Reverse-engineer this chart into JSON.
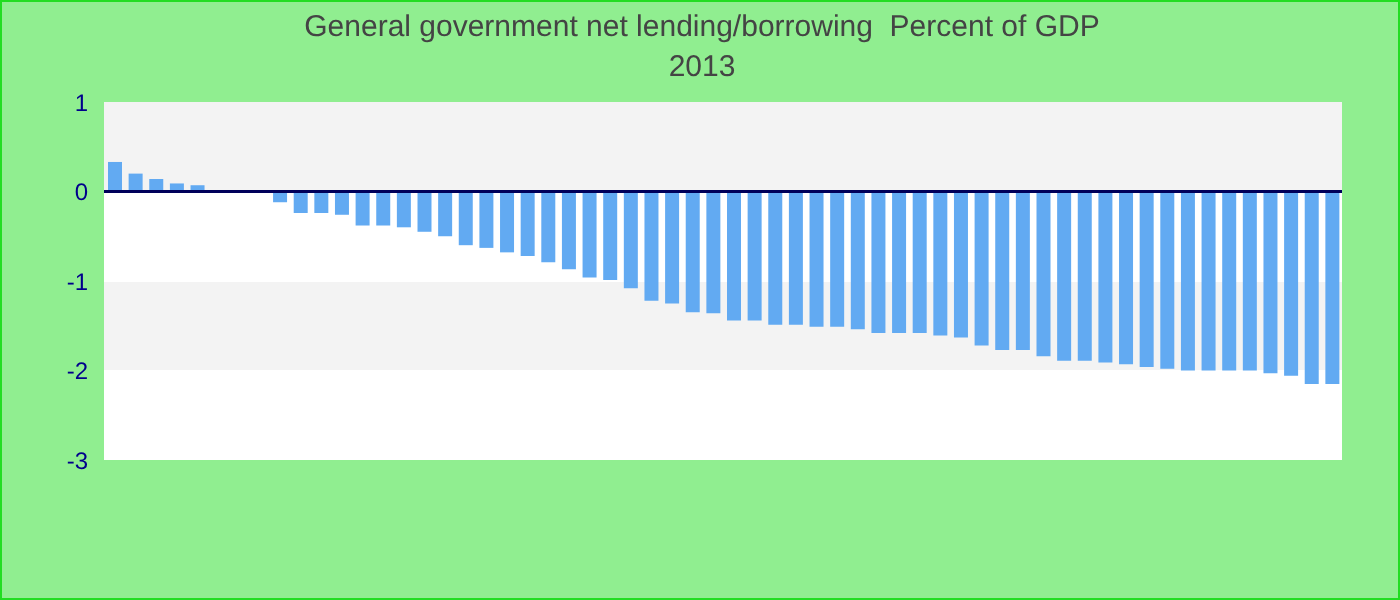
{
  "chart_data": {
    "type": "bar",
    "title": "General government net lending/borrowing  Percent of GDP",
    "subtitle": "2013",
    "categories": [
      null,
      null,
      null,
      null,
      null,
      null,
      null,
      null,
      null,
      null,
      null,
      null,
      null,
      null,
      null,
      null,
      null,
      null,
      null,
      null,
      null,
      null,
      null,
      null,
      null,
      null,
      null,
      null,
      null,
      null,
      null,
      null,
      null,
      null,
      null,
      null,
      null,
      null,
      null,
      null,
      null,
      null,
      null,
      null,
      null,
      null,
      null,
      null,
      null,
      null,
      null,
      null,
      null,
      null,
      null,
      null,
      null,
      null,
      null,
      null
    ],
    "values": [
      0.33,
      0.2,
      0.14,
      0.09,
      0.07,
      0,
      0,
      0,
      -0.12,
      -0.24,
      -0.24,
      -0.26,
      -0.38,
      -0.38,
      -0.4,
      -0.45,
      -0.5,
      -0.6,
      -0.63,
      -0.68,
      -0.72,
      -0.79,
      -0.87,
      -0.96,
      -0.99,
      -1.08,
      -1.22,
      -1.25,
      -1.35,
      -1.36,
      -1.44,
      -1.44,
      -1.49,
      -1.49,
      -1.51,
      -1.51,
      -1.54,
      -1.58,
      -1.58,
      -1.58,
      -1.61,
      -1.63,
      -1.72,
      -1.77,
      -1.77,
      -1.84,
      -1.89,
      -1.89,
      -1.91,
      -1.93,
      -1.96,
      -1.98,
      -2.0,
      -2.0,
      -2.0,
      -2.0,
      -2.03,
      -2.06,
      -2.15,
      -2.15
    ],
    "color": "#62aaf2",
    "ylim": [
      -3,
      1
    ],
    "yticks": [
      -3,
      -2,
      -1,
      0,
      1
    ],
    "legend": false
  }
}
